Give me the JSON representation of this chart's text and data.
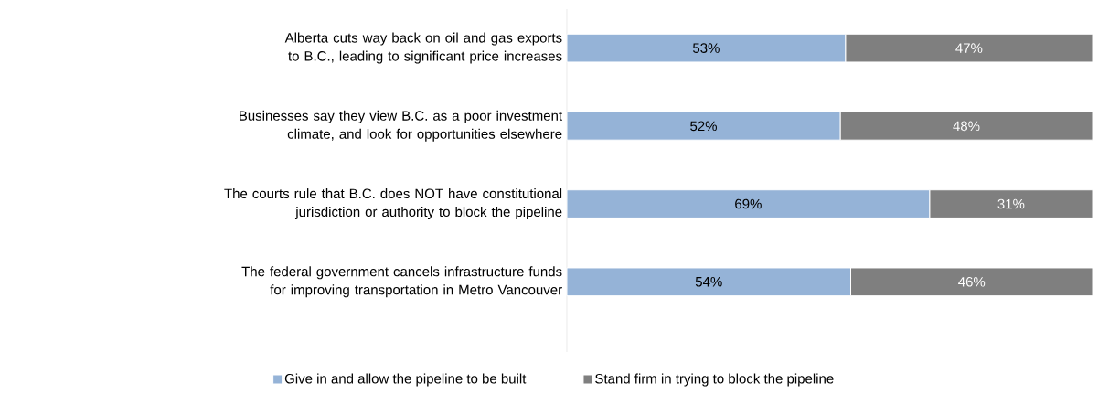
{
  "chart_data": {
    "type": "bar",
    "orientation": "horizontal",
    "stacked": true,
    "categories": [
      "Alberta cuts way back on oil and gas exports to B.C., leading to significant price increases",
      "Businesses say they view B.C. as a poor investment climate, and look for opportunities elsewhere",
      "The courts rule that B.C. does NOT have constitutional jurisdiction or authority to block the pipeline",
      "The federal government cancels infrastructure funds for improving transportation in Metro Vancouver"
    ],
    "series": [
      {
        "name": "Give in and allow the pipeline to be built",
        "color": "#95b3d7",
        "values": [
          53,
          52,
          69,
          54
        ],
        "value_labels": [
          "53%",
          "52%",
          "69%",
          "54%"
        ]
      },
      {
        "name": "Stand firm in trying to block the pipeline",
        "color": "#7f7f7f",
        "values": [
          47,
          48,
          31,
          46
        ],
        "value_labels": [
          "47%",
          "48%",
          "31%",
          "46%"
        ]
      }
    ],
    "tick_labels": "y",
    "legend": "bottom"
  }
}
